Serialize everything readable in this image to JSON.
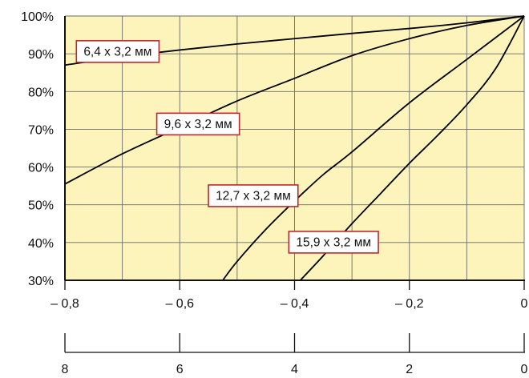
{
  "chart_data": {
    "type": "line",
    "x_axis_top": {
      "range": [
        -0.8,
        0
      ],
      "ticks": [
        -0.8,
        -0.6,
        -0.4,
        -0.2,
        0
      ],
      "tick_labels": [
        "– 0,8",
        "– 0,6",
        "– 0,4",
        "– 0,2",
        "0"
      ]
    },
    "x_axis_bottom": {
      "range": [
        8,
        0
      ],
      "ticks": [
        8,
        6,
        4,
        2,
        0
      ],
      "tick_labels": [
        "8",
        "6",
        "4",
        "2",
        "0"
      ]
    },
    "y_axis": {
      "range": [
        30,
        100
      ],
      "ticks": [
        30,
        40,
        50,
        60,
        70,
        80,
        90,
        100
      ],
      "tick_labels": [
        "30%",
        "40%",
        "50%",
        "60%",
        "70%",
        "80%",
        "90%",
        "100%"
      ]
    },
    "grid": true,
    "plot_background": "#fdf4bc",
    "line_color": "#000000",
    "label_border_color": "#c0272d",
    "series": [
      {
        "name": "6,4 x 3,2 мм",
        "points": [
          [
            -0.8,
            87.0
          ],
          [
            -0.7,
            89.2
          ],
          [
            -0.6,
            91.0
          ],
          [
            -0.5,
            92.6
          ],
          [
            -0.4,
            94.0
          ],
          [
            -0.3,
            95.4
          ],
          [
            -0.2,
            96.7
          ],
          [
            -0.1,
            98.2
          ],
          [
            0.0,
            100.0
          ]
        ]
      },
      {
        "name": "9,6 x 3,2 мм",
        "points": [
          [
            -0.8,
            55.5
          ],
          [
            -0.7,
            63.5
          ],
          [
            -0.6,
            70.5
          ],
          [
            -0.5,
            77.5
          ],
          [
            -0.4,
            83.5
          ],
          [
            -0.3,
            89.5
          ],
          [
            -0.2,
            94.0
          ],
          [
            -0.1,
            97.5
          ],
          [
            0.0,
            100.0
          ]
        ]
      },
      {
        "name": "12,7 x 3,2 мм",
        "points": [
          [
            -0.525,
            30.0
          ],
          [
            -0.5,
            35.0
          ],
          [
            -0.45,
            43.5
          ],
          [
            -0.4,
            51.0
          ],
          [
            -0.35,
            58.0
          ],
          [
            -0.3,
            64.0
          ],
          [
            -0.2,
            77.0
          ],
          [
            -0.1,
            88.5
          ],
          [
            0.0,
            100.0
          ]
        ]
      },
      {
        "name": "15,9 x 3,2 мм",
        "points": [
          [
            -0.39,
            30.0
          ],
          [
            -0.35,
            36.5
          ],
          [
            -0.3,
            45.0
          ],
          [
            -0.25,
            53.0
          ],
          [
            -0.2,
            61.0
          ],
          [
            -0.15,
            68.5
          ],
          [
            -0.1,
            76.5
          ],
          [
            -0.05,
            86.0
          ],
          [
            0.0,
            100.0
          ]
        ]
      }
    ],
    "series_labels": [
      {
        "text": "6,4 x 3,2 мм",
        "x": -0.78,
        "y": 90.7
      },
      {
        "text": "9,6 x 3,2 мм",
        "x": -0.64,
        "y": 71.5
      },
      {
        "text": "12,7 x 3,2 мм",
        "x": -0.55,
        "y": 52.5
      },
      {
        "text": "15,9 x 3,2 мм",
        "x": -0.41,
        "y": 40.2
      }
    ]
  }
}
